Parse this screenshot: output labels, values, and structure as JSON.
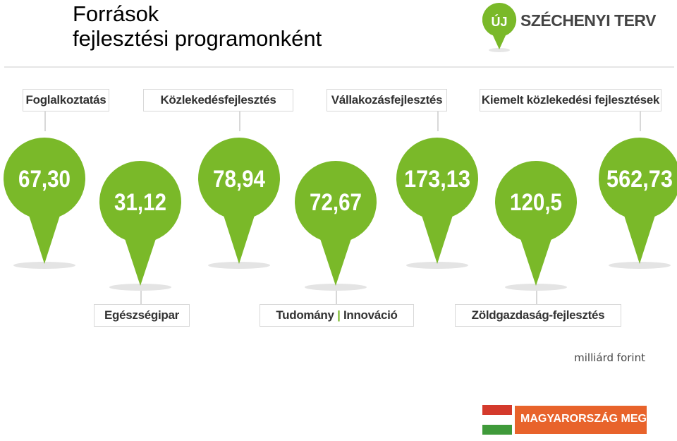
{
  "page": {
    "title_line1": "Források",
    "title_line2": "fejlesztési programonként",
    "brand_badge": "ÚJ",
    "brand_name": "SZÉCHENYI TERV",
    "unit": "milliárd forint",
    "footer_logo": "MAGYARORSZÁG MEGÚJUL"
  },
  "colors": {
    "pin": "#7ab929",
    "shadow": "#e4e4e4",
    "brand_green": "#7ab929",
    "orange": "#e8632b"
  },
  "labels": {
    "top": [
      "Foglalkoztatás",
      "Közlekedésfejlesztés",
      "Vállakozásfejlesztés",
      "Kiemelt közlekedési fejlesztések"
    ],
    "bottom": [
      "Egészségipar",
      "Tudomány | Innováció",
      "Zöldgazdaság-fejlesztés"
    ]
  },
  "chart_data": {
    "type": "bar",
    "categories": [
      "Foglalkoztatás",
      "Egészségipar",
      "Közlekedésfejlesztés",
      "Tudomány | Innováció",
      "Vállakozásfejlesztés",
      "Zöldgazdaság-fejlesztés",
      "Kiemelt közlekedési fejlesztések"
    ],
    "values": [
      67.3,
      31.12,
      78.94,
      72.67,
      173.13,
      120.5,
      562.73
    ],
    "value_labels": [
      "67,30",
      "31,12",
      "78,94",
      "72,67",
      "173,13",
      "120,5",
      "562,73"
    ],
    "unit": "milliárd forint",
    "title": "Források fejlesztési programonként"
  }
}
